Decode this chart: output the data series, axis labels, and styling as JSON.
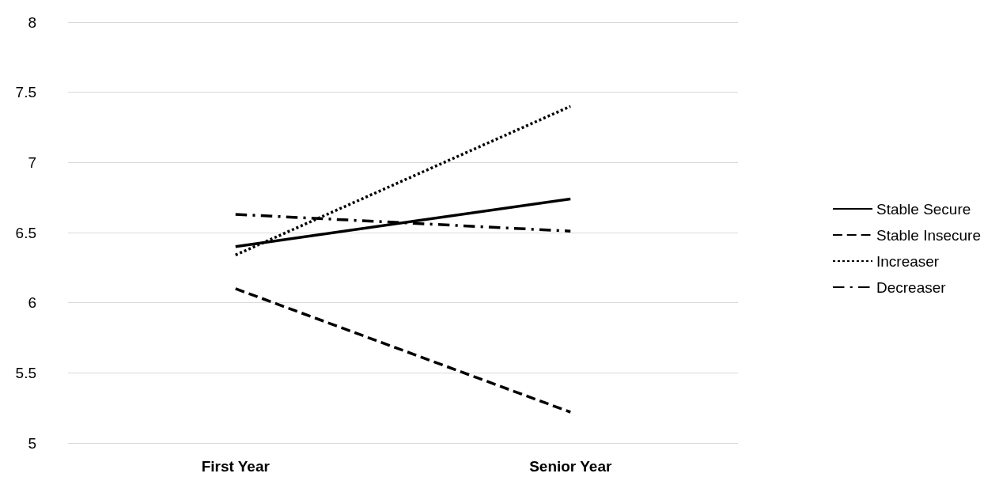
{
  "chart_data": {
    "type": "line",
    "categories": [
      "First Year",
      "Senior Year"
    ],
    "series": [
      {
        "name": "Stable Secure",
        "color": "#000000",
        "line_style": "solid",
        "values": [
          6.4,
          6.74
        ]
      },
      {
        "name": "Stable Insecure",
        "color": "#000000",
        "line_style": "dashed",
        "values": [
          6.1,
          5.22
        ]
      },
      {
        "name": "Increaser",
        "color": "#000000",
        "line_style": "dotted",
        "values": [
          6.34,
          7.4
        ]
      },
      {
        "name": "Decreaser",
        "color": "#000000",
        "line_style": "dashdot",
        "values": [
          6.63,
          6.51
        ]
      }
    ],
    "ylim": [
      5,
      8
    ],
    "yticks": [
      5,
      5.5,
      6,
      6.5,
      7,
      7.5,
      8
    ],
    "grid": "y",
    "legend": "right",
    "marker": "none"
  }
}
